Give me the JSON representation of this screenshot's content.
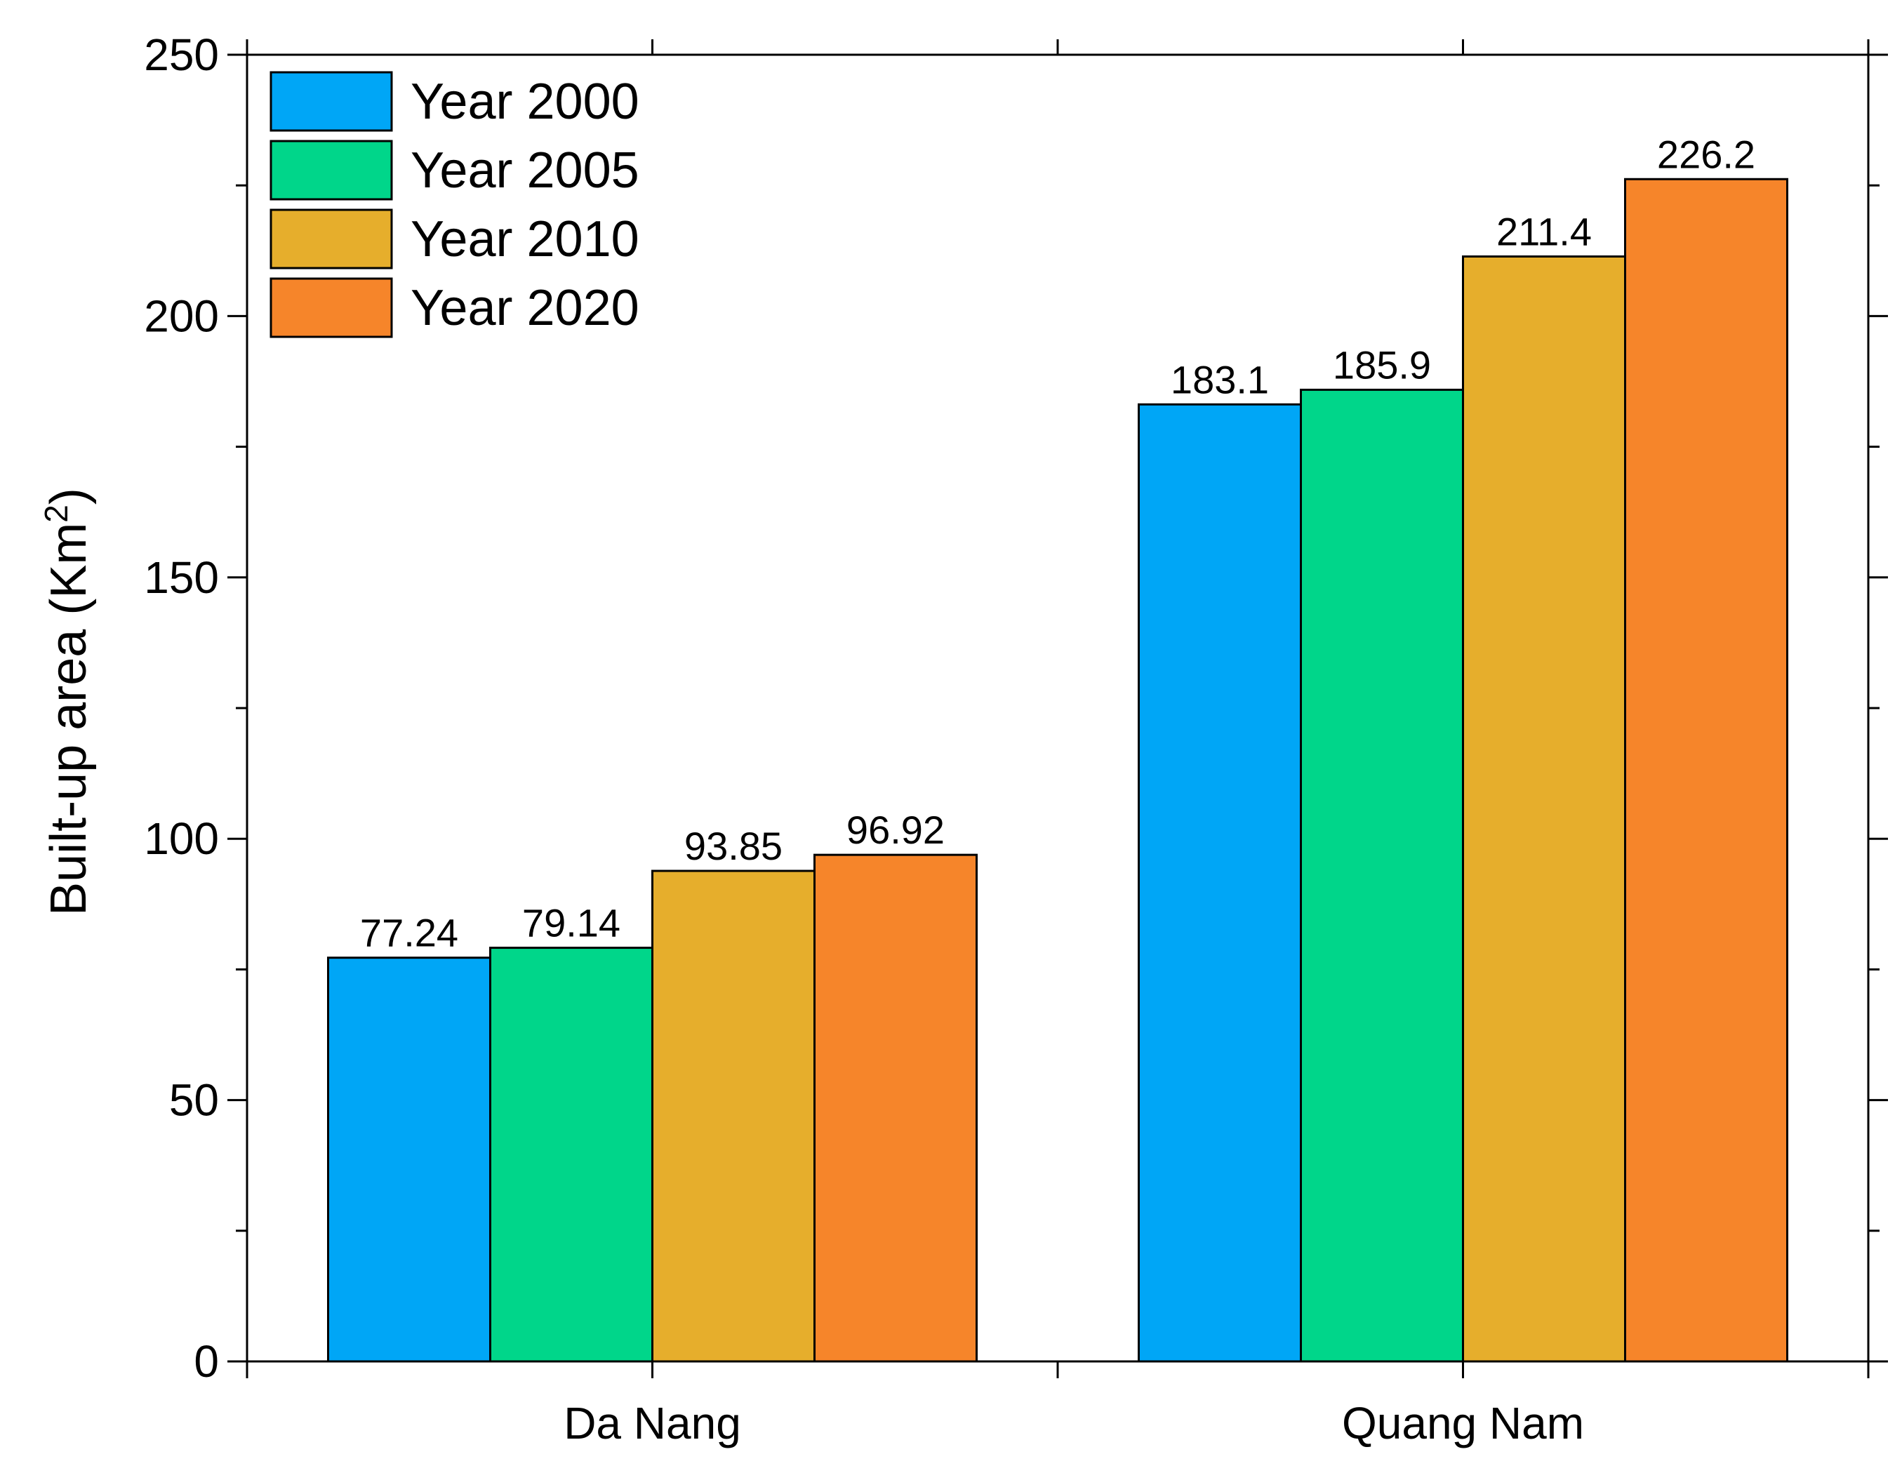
{
  "chart_data": {
    "type": "bar",
    "categories": [
      "Da Nang",
      "Quang Nam"
    ],
    "series": [
      {
        "name": "Year 2000",
        "values": [
          77.24,
          183.1
        ],
        "labels": [
          "77.24",
          "183.1"
        ],
        "color": "#00A6F6"
      },
      {
        "name": "Year 2005",
        "values": [
          79.14,
          185.9
        ],
        "labels": [
          "79.14",
          "185.9"
        ],
        "color": "#00D68A"
      },
      {
        "name": "Year 2010",
        "values": [
          93.85,
          211.4
        ],
        "labels": [
          "93.85",
          "211.4"
        ],
        "color": "#E6AE2C"
      },
      {
        "name": "Year 2020",
        "values": [
          96.92,
          226.2
        ],
        "labels": [
          "96.92",
          "226.2"
        ],
        "color": "#F6852A"
      }
    ],
    "title": "",
    "xlabel": "",
    "ylabel": "Built-up area (Km",
    "ylabel_superscript": "2",
    "ylabel_suffix": ")",
    "ylim": [
      0,
      250
    ],
    "yticks": [
      0,
      50,
      100,
      150,
      200,
      250
    ],
    "ytick_labels": [
      "0",
      "50",
      "100",
      "150",
      "200",
      "250"
    ],
    "legend_position": "top-left",
    "grid": false
  }
}
